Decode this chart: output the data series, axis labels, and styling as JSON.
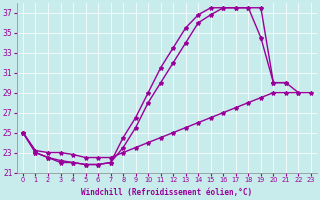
{
  "xlabel": "Windchill (Refroidissement éolien,°C)",
  "background_color": "#c8ecec",
  "line_color": "#990099",
  "marker": "*",
  "xlim": [
    -0.5,
    23.5
  ],
  "ylim": [
    21,
    38
  ],
  "yticks": [
    21,
    23,
    25,
    27,
    29,
    31,
    33,
    35,
    37
  ],
  "xticks": [
    0,
    1,
    2,
    3,
    4,
    5,
    6,
    7,
    8,
    9,
    10,
    11,
    12,
    13,
    14,
    15,
    16,
    17,
    18,
    19,
    20,
    21,
    22,
    23
  ],
  "series1_x": [
    0,
    1,
    2,
    3,
    4,
    5,
    6,
    7,
    8,
    9,
    10,
    11,
    12,
    13,
    14,
    15,
    16,
    17,
    18,
    19,
    20,
    21
  ],
  "series1_y": [
    25,
    23,
    22.5,
    22.2,
    22.0,
    21.8,
    21.8,
    22.0,
    23.5,
    25.5,
    28.0,
    30.0,
    32.0,
    34.0,
    36.0,
    36.8,
    37.5,
    37.5,
    37.5,
    37.5,
    30.0,
    30.0
  ],
  "series2_x": [
    0,
    1,
    2,
    3,
    4,
    5,
    6,
    7,
    8,
    9,
    10,
    11,
    12,
    13,
    14,
    15,
    16,
    17,
    18,
    19,
    20,
    21,
    22
  ],
  "series2_y": [
    25,
    23,
    22.5,
    22.0,
    22.0,
    21.8,
    21.8,
    22.0,
    24.5,
    26.5,
    29.0,
    31.5,
    33.5,
    35.5,
    36.8,
    37.5,
    37.5,
    37.5,
    37.5,
    34.5,
    30.0,
    30.0,
    29.0
  ],
  "series3_x": [
    0,
    1,
    2,
    3,
    4,
    5,
    6,
    7,
    8,
    9,
    10,
    11,
    12,
    13,
    14,
    15,
    16,
    17,
    18,
    19,
    20,
    21,
    22,
    23
  ],
  "series3_y": [
    25,
    23.2,
    23.0,
    23.0,
    22.8,
    22.5,
    22.5,
    22.5,
    23.0,
    23.5,
    24.0,
    24.5,
    25.0,
    25.5,
    26.0,
    26.5,
    27.0,
    27.5,
    28.0,
    28.5,
    29.0,
    29.0,
    29.0,
    29.0
  ]
}
